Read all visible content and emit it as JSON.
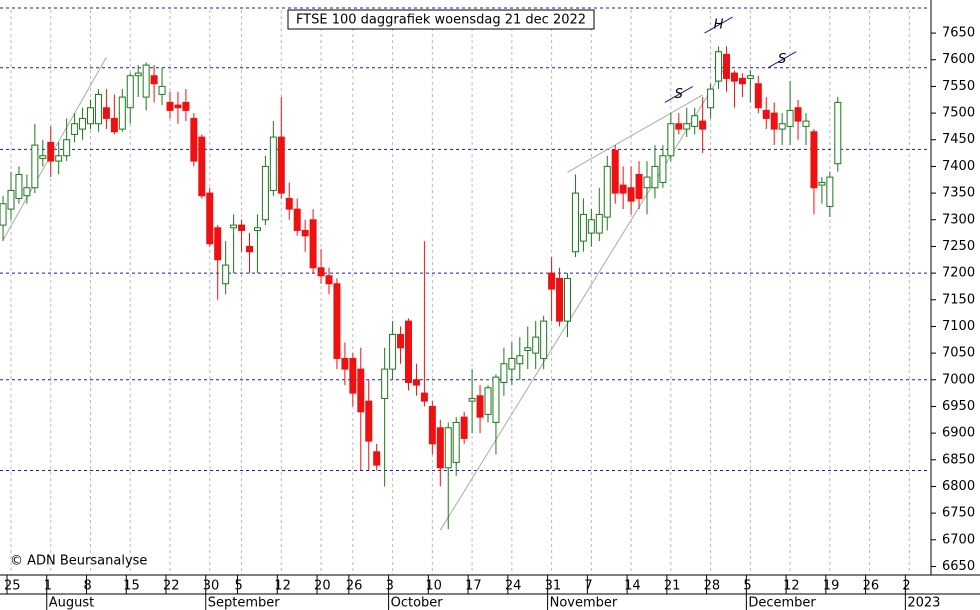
{
  "chart_data": {
    "type": "candlestick",
    "title": "FTSE 100 daggrafiek woensdag 21 dec 2022",
    "credit": "© ADN Beursanalyse",
    "categories": [
      null,
      "25",
      null,
      null,
      null,
      null,
      "1",
      null,
      null,
      null,
      null,
      "8",
      null,
      null,
      null,
      null,
      "15",
      null,
      null,
      null,
      null,
      "22",
      null,
      null,
      null,
      null,
      "30",
      null,
      null,
      null,
      "5",
      null,
      null,
      null,
      null,
      "12",
      null,
      null,
      null,
      null,
      "20",
      null,
      null,
      null,
      "26",
      null,
      null,
      null,
      null,
      "3",
      null,
      null,
      null,
      null,
      "10",
      null,
      null,
      null,
      null,
      "17",
      null,
      null,
      null,
      null,
      "24",
      null,
      null,
      null,
      null,
      "31",
      null,
      null,
      null,
      null,
      "7",
      null,
      null,
      null,
      null,
      "14",
      null,
      null,
      null,
      null,
      "21",
      null,
      null,
      null,
      null,
      "28",
      null,
      null,
      null,
      null,
      "5",
      null,
      null,
      null,
      null,
      "12",
      null,
      null,
      null,
      null,
      "19",
      null,
      null,
      null,
      null,
      "26",
      null,
      null,
      null,
      null,
      "2"
    ],
    "months": [
      {
        "label": "August",
        "index": 6
      },
      {
        "label": "September",
        "index": 26
      },
      {
        "label": "October",
        "index": 49
      },
      {
        "label": "November",
        "index": 69
      },
      {
        "label": "December",
        "index": 94
      },
      {
        "label": "2023",
        "index": 114
      }
    ],
    "open": [
      7290,
      7320,
      7340,
      7345,
      7360,
      7415,
      7445,
      7410,
      7420,
      7460,
      7470,
      7480,
      7480,
      7510,
      7490,
      7470,
      7510,
      7570,
      7530,
      7570,
      7535,
      7520,
      7515,
      7520,
      7490,
      7455,
      7350,
      7285,
      7180,
      7285,
      7290,
      7250,
      7280,
      7300,
      7355,
      7455,
      7340,
      7320,
      7280,
      7300,
      7210,
      7195,
      7180,
      7040,
      7040,
      7020,
      6960,
      6865,
      6965,
      7020,
      7085,
      7110,
      7000,
      6975,
      6950,
      6910,
      6835,
      6845,
      6930,
      6960,
      6970,
      6935,
      6920,
      6995,
      7020,
      7030,
      7055,
      7050,
      7040,
      7200,
      7190,
      7110,
      7240,
      7260,
      7275,
      7275,
      7305,
      7430,
      7365,
      7360,
      7385,
      7360,
      7360,
      7370,
      7420,
      7480,
      7470,
      7475,
      7485,
      7510,
      7560,
      7610,
      7575,
      7565,
      7565,
      7555,
      7505,
      7500,
      7470,
      7475,
      7510,
      7475,
      7465,
      7365,
      7325,
      7405,
      null,
      null,
      null,
      null,
      null,
      null,
      null,
      null,
      null
    ],
    "high": [
      7345,
      7390,
      7400,
      7385,
      7480,
      7450,
      7475,
      7445,
      7490,
      7500,
      7510,
      7525,
      7545,
      7545,
      7535,
      7545,
      7575,
      7590,
      7595,
      7590,
      7585,
      7540,
      7540,
      7545,
      7500,
      7460,
      7360,
      7290,
      7260,
      7310,
      7300,
      7275,
      7310,
      7420,
      7485,
      7530,
      7370,
      7340,
      7300,
      7320,
      7245,
      7210,
      7190,
      7070,
      7050,
      7060,
      7000,
      6880,
      7060,
      7110,
      7100,
      7115,
      7030,
      7260,
      6960,
      6925,
      6920,
      6930,
      6940,
      7020,
      6990,
      6990,
      7010,
      7060,
      7070,
      7080,
      7100,
      7110,
      7120,
      7230,
      7210,
      7200,
      7385,
      7340,
      7320,
      7360,
      7420,
      7440,
      7400,
      7400,
      7410,
      7410,
      7440,
      7440,
      7500,
      7500,
      7510,
      7510,
      7530,
      7555,
      7625,
      7625,
      7580,
      7575,
      7580,
      7570,
      7530,
      7520,
      7500,
      7560,
      7525,
      7500,
      7470,
      7380,
      7390,
      7530,
      null,
      null,
      null,
      null,
      null,
      null,
      null,
      null,
      null
    ],
    "low": [
      7260,
      7300,
      7330,
      7330,
      7350,
      7400,
      7380,
      7385,
      7410,
      7445,
      7450,
      7470,
      7465,
      7470,
      7460,
      7465,
      7480,
      7530,
      7505,
      7520,
      7515,
      7490,
      7480,
      7485,
      7400,
      7340,
      7250,
      7150,
      7160,
      7200,
      7240,
      7200,
      7200,
      7290,
      7345,
      7340,
      7300,
      7270,
      7240,
      7200,
      7180,
      7160,
      7020,
      6990,
      6950,
      6830,
      6830,
      6830,
      6800,
      7000,
      7030,
      6980,
      6970,
      6950,
      6860,
      6800,
      6720,
      6820,
      6880,
      6900,
      6900,
      6920,
      6860,
      6970,
      6990,
      7000,
      7020,
      7020,
      7020,
      7110,
      7100,
      7080,
      7230,
      7240,
      7250,
      7260,
      7280,
      7330,
      7320,
      7310,
      7320,
      7310,
      7340,
      7360,
      7410,
      7460,
      7455,
      7460,
      7425,
      7490,
      7545,
      7540,
      7510,
      7530,
      7520,
      7500,
      7470,
      7440,
      7440,
      7440,
      7450,
      7440,
      7310,
      7330,
      7305,
      7390,
      null,
      null,
      null,
      null,
      null,
      null,
      null,
      null,
      null
    ],
    "close": [
      7330,
      7355,
      7385,
      7360,
      7440,
      7420,
      7410,
      7420,
      7450,
      7480,
      7490,
      7510,
      7535,
      7490,
      7465,
      7530,
      7570,
      7575,
      7590,
      7555,
      7550,
      7505,
      7510,
      7505,
      7410,
      7345,
      7255,
      7225,
      7215,
      7290,
      7280,
      7240,
      7285,
      7400,
      7455,
      7350,
      7320,
      7280,
      7270,
      7210,
      7195,
      7180,
      7040,
      7020,
      6975,
      6940,
      6885,
      6840,
      7020,
      7085,
      7060,
      6995,
      6990,
      6960,
      6880,
      6835,
      6910,
      6920,
      6890,
      6965,
      6930,
      6985,
      7005,
      7030,
      7040,
      7045,
      7060,
      7080,
      7110,
      7170,
      7110,
      7190,
      7350,
      7310,
      7300,
      7310,
      7400,
      7350,
      7350,
      7335,
      7340,
      7380,
      7400,
      7420,
      7480,
      7470,
      7480,
      7495,
      7470,
      7545,
      7615,
      7565,
      7560,
      7555,
      7570,
      7510,
      7490,
      7470,
      7480,
      7505,
      7485,
      7485,
      7360,
      7370,
      7380,
      7520,
      null,
      null,
      null,
      null,
      null,
      null,
      null,
      null,
      null
    ],
    "up_color": "#1a7a1a",
    "down_color": "#ee1111",
    "level_color": "#1a1aa0",
    "trend_color": "#aaaaaa",
    "levels": [
      7585,
      7432,
      7200,
      7000,
      6830
    ],
    "trendlines": [
      {
        "from": {
          "index": 0,
          "value": 7262
        },
        "to": {
          "index": 13,
          "value": 7605
        }
      },
      {
        "from": {
          "index": 55,
          "value": 6718
        },
        "to": {
          "index": 91,
          "value": 7590
        }
      },
      {
        "from": {
          "index": 71,
          "value": 7389
        },
        "to": {
          "index": 88,
          "value": 7534
        }
      }
    ],
    "annotations": [
      {
        "text": "S",
        "index": 85,
        "value": 7535
      },
      {
        "text": "H",
        "index": 90,
        "value": 7665
      },
      {
        "text": "S",
        "index": 98,
        "value": 7600
      }
    ],
    "ylim": [
      6634,
      7712
    ],
    "yticks": [
      6650,
      6700,
      6750,
      6800,
      6850,
      6900,
      6950,
      7000,
      7050,
      7100,
      7150,
      7200,
      7250,
      7300,
      7350,
      7400,
      7450,
      7500,
      7550,
      7600,
      7650
    ]
  }
}
